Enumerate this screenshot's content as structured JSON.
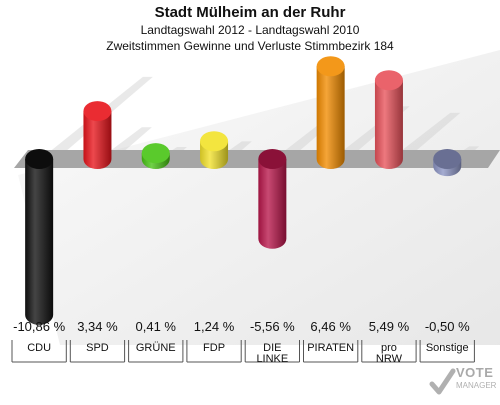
{
  "header": {
    "title": "Stadt Mülheim an der Ruhr",
    "subtitle1": "Landtagswahl 2012 - Landtagswahl 2010",
    "subtitle2": "Zweitstimmen Gewinne und Verluste Stimmbezirk 184"
  },
  "chart_data": {
    "type": "bar",
    "categories": [
      "CDU",
      "SPD",
      "GRÜNE",
      "FDP",
      "DIE LINKE",
      "PIRATEN",
      "pro NRW",
      "Sonstige"
    ],
    "category_lines": [
      [
        "CDU"
      ],
      [
        "SPD"
      ],
      [
        "GRÜNE"
      ],
      [
        "FDP"
      ],
      [
        "DIE",
        "LINKE"
      ],
      [
        "PIRATEN"
      ],
      [
        "pro",
        "NRW"
      ],
      [
        "Sonstige"
      ]
    ],
    "values": [
      -10.86,
      3.34,
      0.41,
      1.24,
      -5.56,
      6.46,
      5.49,
      -0.5
    ],
    "value_labels": [
      "-10,86 %",
      "3,34 %",
      "0,41 %",
      "1,24 %",
      "-5,56 %",
      "6,46 %",
      "5,49 %",
      "-0,50 %"
    ],
    "colors": [
      "#111111",
      "#e8141b",
      "#48c414",
      "#f2e22a",
      "#b8164a",
      "#f28c00",
      "#e8525a",
      "#8c94c4"
    ],
    "ylim": [
      -10.86,
      6.46
    ],
    "grid": false,
    "legend": "none"
  },
  "watermark": {
    "text": "VOTE",
    "subtext": "MANAGER"
  }
}
